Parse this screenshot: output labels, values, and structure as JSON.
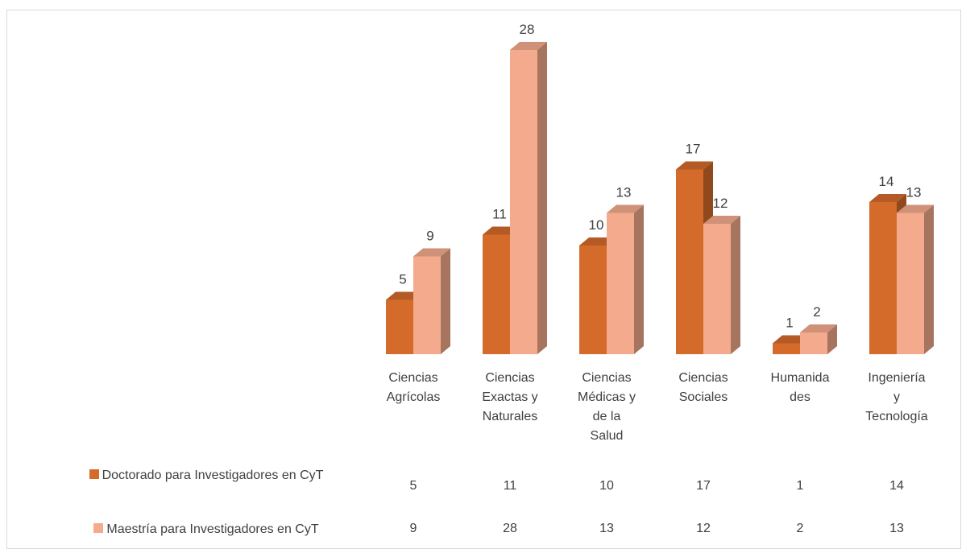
{
  "chart_data": {
    "type": "bar3d",
    "categories": [
      "Ciencias Agrícolas",
      "Ciencias Exactas y Naturales",
      "Ciencias Médicas y de la Salud",
      "Ciencias Sociales",
      "Humanidades",
      "Ingeniería y Tecnología"
    ],
    "series": [
      {
        "name": "Doctorado para Investigadores en CyT",
        "color": "#d46b2b",
        "values": [
          5,
          11,
          10,
          17,
          1,
          14
        ]
      },
      {
        "name": "Maestría para Investigadores en CyT",
        "color": "#f4aa8c",
        "values": [
          9,
          28,
          13,
          12,
          2,
          13
        ]
      }
    ]
  }
}
